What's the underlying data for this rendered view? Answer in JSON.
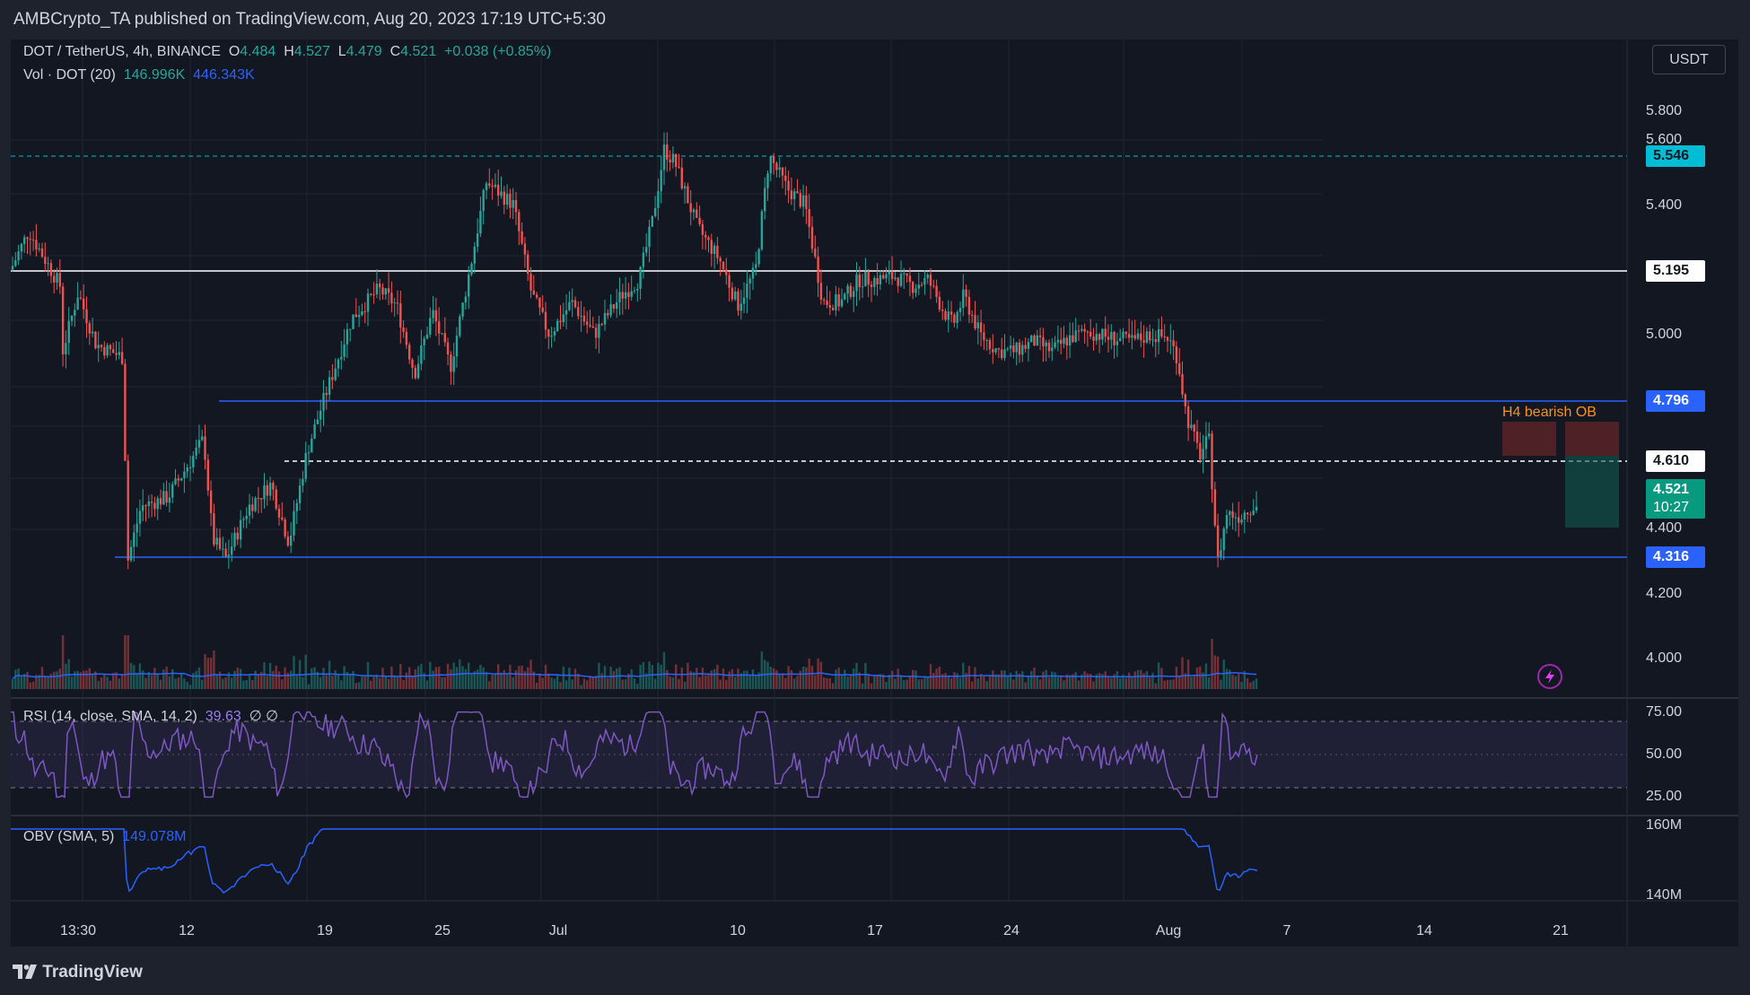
{
  "header": {
    "publisher_line": "AMBCrypto_TA published on TradingView.com, Aug 20, 2023 17:19 UTC+5:30"
  },
  "legend": {
    "symbol": "DOT / TetherUS, 4h, BINANCE",
    "o_label": "O",
    "o_value": "4.484",
    "h_label": "H",
    "h_value": "4.527",
    "l_label": "L",
    "l_value": "4.479",
    "c_label": "C",
    "c_value": "4.521",
    "change": "+0.038 (+0.85%)",
    "vol_label": "Vol · DOT (20)",
    "vol_value1": "146.996K",
    "vol_value2": "446.343K"
  },
  "currency_button": "USDT",
  "price_axis": {
    "ticks": [
      "5.800",
      "5.600",
      "5.400",
      "5.000",
      "4.400",
      "4.200",
      "4.000"
    ]
  },
  "levels": [
    {
      "value": "5.546",
      "style": "dashed",
      "color": "#00bcd4"
    },
    {
      "value": "5.195",
      "style": "solid",
      "color": "#ffffff"
    },
    {
      "value": "4.796",
      "style": "solid",
      "color": "#2962ff"
    },
    {
      "value": "4.610",
      "style": "dashed",
      "color": "#ffffff"
    },
    {
      "value": "4.316",
      "style": "solid",
      "color": "#2962ff"
    }
  ],
  "last_price": {
    "value": "4.521",
    "countdown": "10:27",
    "color": "#089981"
  },
  "annotation": {
    "text": "H4 bearish OB",
    "color": "#f7931a"
  },
  "rsi": {
    "label": "RSI (14, close, SMA, 14, 2)",
    "value": "39.63",
    "placeholders": "∅ ∅",
    "ticks": [
      "75.00",
      "50.00",
      "25.00"
    ]
  },
  "obv": {
    "label": "OBV (SMA, 5)",
    "value": "149.078M",
    "ticks": [
      "160M",
      "140M"
    ]
  },
  "time_axis": [
    "13:30",
    "12",
    "19",
    "25",
    "Jul",
    "10",
    "17",
    "24",
    "Aug",
    "7",
    "14",
    "21"
  ],
  "footer": {
    "brand": "TradingView"
  },
  "colors": {
    "bull": "#26a69a",
    "bear": "#ef5350",
    "background": "#131722",
    "rsi_line": "#7e57c2",
    "obv_line": "#2962ff"
  },
  "icons": [
    "lightning-icon",
    "tradingview-logo-icon"
  ]
}
